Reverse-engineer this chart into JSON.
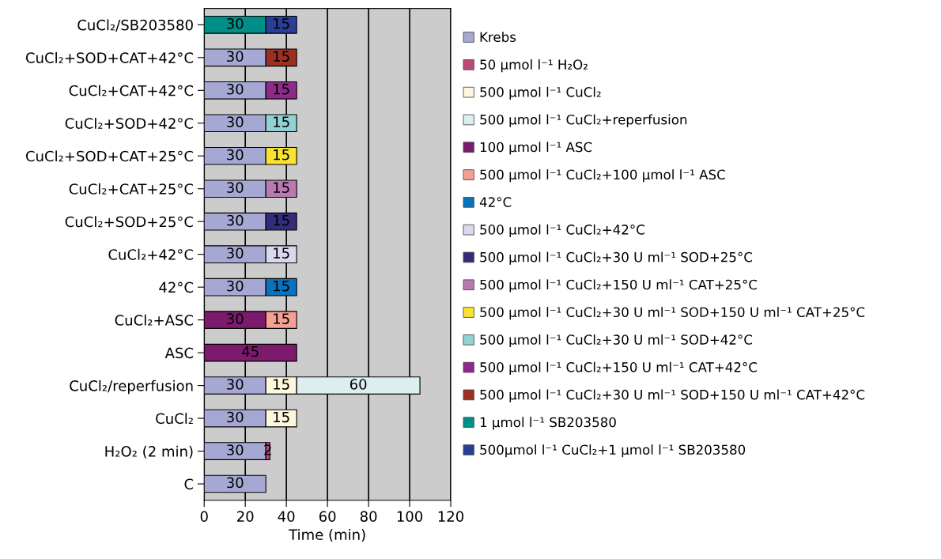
{
  "chart_data": {
    "type": "bar",
    "orientation": "horizontal",
    "stacked": true,
    "data_labels": true,
    "xlabel": "Time (min)",
    "xlim": [
      0,
      120
    ],
    "xticks": [
      0,
      20,
      40,
      60,
      80,
      100,
      120
    ],
    "grid": "x",
    "legend": "right",
    "categories": [
      "CuCl₂/SB203580",
      "CuCl₂+SOD+CAT+42°C",
      "CuCl₂+CAT+42°C",
      "CuCl₂+SOD+42°C",
      "CuCl₂+SOD+CAT+25°C",
      "CuCl₂+CAT+25°C",
      "CuCl₂+SOD+25°C",
      "CuCl₂+42°C",
      "42°C",
      "CuCl₂+ASC",
      "ASC",
      "CuCl₂/reperfusion",
      "CuCl₂",
      "H₂O₂ (2 min)",
      "C"
    ],
    "series": [
      {
        "name": "Krebs",
        "color": "#a6a8d4",
        "values": [
          null,
          30,
          30,
          30,
          30,
          30,
          30,
          30,
          30,
          null,
          null,
          30,
          30,
          30,
          30
        ]
      },
      {
        "name": "50 µmol l⁻¹ H₂O₂",
        "color": "#b94a78",
        "values": [
          null,
          null,
          null,
          null,
          null,
          null,
          null,
          null,
          null,
          null,
          null,
          null,
          null,
          2,
          null
        ]
      },
      {
        "name": "500 µmol l⁻¹ CuCl₂",
        "color": "#fdf7dc",
        "values": [
          null,
          null,
          null,
          null,
          null,
          null,
          null,
          null,
          null,
          null,
          null,
          15,
          15,
          null,
          null
        ]
      },
      {
        "name": "500 µmol l⁻¹ CuCl₂+reperfusion",
        "color": "#ddeef0",
        "values": [
          null,
          null,
          null,
          null,
          null,
          null,
          null,
          null,
          null,
          null,
          null,
          60,
          null,
          null,
          null
        ]
      },
      {
        "name": "100 µmol l⁻¹ ASC",
        "color": "#7c1a6e",
        "values": [
          null,
          null,
          null,
          null,
          null,
          null,
          null,
          null,
          null,
          30,
          45,
          null,
          null,
          null,
          null
        ]
      },
      {
        "name": "500 µmol l⁻¹ CuCl₂+100 µmol l⁻¹ ASC",
        "color": "#f4a094",
        "values": [
          null,
          null,
          null,
          null,
          null,
          null,
          null,
          null,
          null,
          15,
          null,
          null,
          null,
          null,
          null
        ]
      },
      {
        "name": "42°C",
        "color": "#0a72bc",
        "values": [
          null,
          null,
          null,
          null,
          null,
          null,
          null,
          null,
          15,
          null,
          null,
          null,
          null,
          null,
          null
        ]
      },
      {
        "name": "500 µmol l⁻¹ CuCl₂+42°C",
        "color": "#d8d8ee",
        "values": [
          null,
          null,
          null,
          null,
          null,
          null,
          null,
          15,
          null,
          null,
          null,
          null,
          null,
          null,
          null
        ]
      },
      {
        "name": "500 µmol l⁻¹ CuCl₂+30 U ml⁻¹ SOD+25°C",
        "color": "#332c7a",
        "values": [
          null,
          null,
          null,
          null,
          null,
          null,
          15,
          null,
          null,
          null,
          null,
          null,
          null,
          null,
          null
        ]
      },
      {
        "name": "500 µmol l⁻¹ CuCl₂+150 U ml⁻¹ CAT+25°C",
        "color": "#b87ab0",
        "values": [
          null,
          null,
          null,
          null,
          null,
          15,
          null,
          null,
          null,
          null,
          null,
          null,
          null,
          null,
          null
        ]
      },
      {
        "name": "500 µmol l⁻¹ CuCl₂+30 U ml⁻¹ SOD+150 U ml⁻¹ CAT+25°C",
        "color": "#fae230",
        "values": [
          null,
          null,
          null,
          null,
          15,
          null,
          null,
          null,
          null,
          null,
          null,
          null,
          null,
          null,
          null
        ]
      },
      {
        "name": "500 µmol l⁻¹ CuCl₂+30 U ml⁻¹ SOD+42°C",
        "color": "#92d2d4",
        "values": [
          null,
          null,
          null,
          15,
          null,
          null,
          null,
          null,
          null,
          null,
          null,
          null,
          null,
          null,
          null
        ]
      },
      {
        "name": "500 µmol l⁻¹ CuCl₂+150 U ml⁻¹ CAT+42°C",
        "color": "#8e2a8a",
        "values": [
          null,
          null,
          15,
          null,
          null,
          null,
          null,
          null,
          null,
          null,
          null,
          null,
          null,
          null,
          null
        ]
      },
      {
        "name": "500 µmol l⁻¹ CuCl₂+30 U ml⁻¹ SOD+150 U ml⁻¹ CAT+42°C",
        "color": "#9c2e22",
        "values": [
          null,
          15,
          null,
          null,
          null,
          null,
          null,
          null,
          null,
          null,
          null,
          null,
          null,
          null,
          null
        ]
      },
      {
        "name": "1 µmol l⁻¹ SB203580",
        "color": "#008e88",
        "values": [
          30,
          null,
          null,
          null,
          null,
          null,
          null,
          null,
          null,
          null,
          null,
          null,
          null,
          null,
          null
        ]
      },
      {
        "name": "500µmol l⁻¹ CuCl₂+1 µmol l⁻¹ SB203580",
        "color": "#2a3e98",
        "values": [
          15,
          null,
          null,
          null,
          null,
          null,
          null,
          null,
          null,
          null,
          null,
          null,
          null,
          null,
          null
        ]
      }
    ]
  }
}
